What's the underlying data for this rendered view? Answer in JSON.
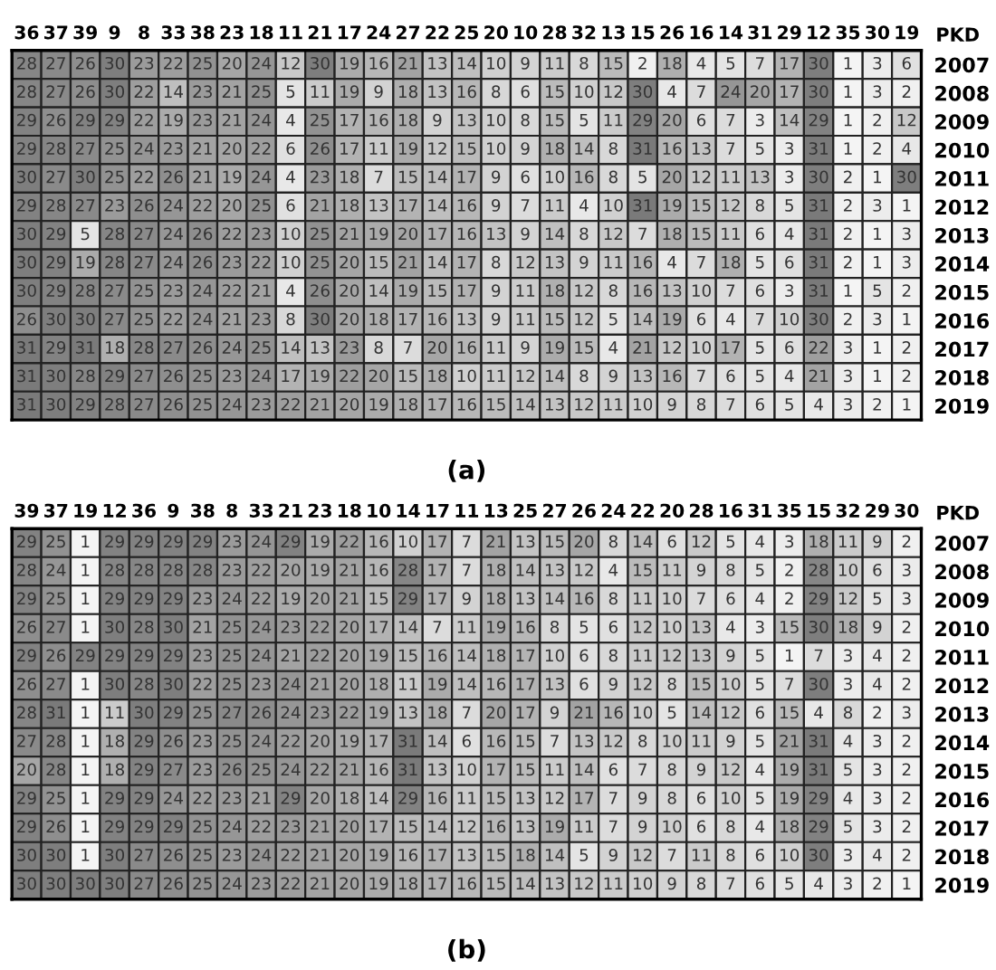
{
  "chart_data": [
    {
      "type": "heatmap",
      "title": "(a)",
      "ylabel": "PKD",
      "data_labels": true,
      "categories": [
        "36",
        "37",
        "39",
        "9",
        "8",
        "33",
        "38",
        "23",
        "18",
        "11",
        "21",
        "17",
        "24",
        "27",
        "22",
        "25",
        "20",
        "10",
        "28",
        "32",
        "13",
        "15",
        "26",
        "16",
        "14",
        "31",
        "29",
        "12",
        "35",
        "30",
        "19"
      ],
      "y_categories": [
        "2007",
        "2008",
        "2009",
        "2010",
        "2011",
        "2012",
        "2013",
        "2014",
        "2015",
        "2016",
        "2017",
        "2018",
        "2019"
      ],
      "cells": [
        [
          28,
          27,
          26,
          30,
          23,
          22,
          25,
          20,
          24,
          12,
          30,
          19,
          16,
          21,
          13,
          14,
          10,
          9,
          11,
          8,
          15,
          2,
          18,
          4,
          5,
          7,
          17,
          30,
          1,
          3,
          6
        ],
        [
          28,
          27,
          26,
          30,
          22,
          14,
          23,
          21,
          25,
          5,
          11,
          19,
          9,
          18,
          13,
          16,
          8,
          6,
          15,
          10,
          12,
          30,
          4,
          7,
          24,
          20,
          17,
          30,
          1,
          3,
          2
        ],
        [
          29,
          26,
          29,
          29,
          22,
          19,
          23,
          21,
          24,
          4,
          25,
          17,
          16,
          18,
          9,
          13,
          10,
          8,
          15,
          5,
          11,
          29,
          20,
          6,
          7,
          3,
          14,
          29,
          1,
          2,
          12
        ],
        [
          29,
          28,
          27,
          25,
          24,
          23,
          21,
          20,
          22,
          6,
          26,
          17,
          11,
          19,
          12,
          15,
          10,
          9,
          18,
          14,
          8,
          31,
          16,
          13,
          7,
          5,
          3,
          31,
          1,
          2,
          4
        ],
        [
          30,
          27,
          30,
          25,
          22,
          26,
          21,
          19,
          24,
          4,
          23,
          18,
          7,
          15,
          14,
          17,
          9,
          6,
          10,
          16,
          8,
          5,
          20,
          12,
          11,
          13,
          3,
          30,
          2,
          1,
          30
        ],
        [
          29,
          28,
          27,
          23,
          26,
          24,
          22,
          20,
          25,
          6,
          21,
          18,
          13,
          17,
          14,
          16,
          9,
          7,
          11,
          4,
          10,
          31,
          19,
          15,
          12,
          8,
          5,
          31,
          2,
          3,
          1
        ],
        [
          30,
          29,
          5,
          28,
          27,
          24,
          26,
          22,
          23,
          10,
          25,
          21,
          19,
          20,
          17,
          16,
          13,
          9,
          14,
          8,
          12,
          7,
          18,
          15,
          11,
          6,
          4,
          31,
          2,
          1,
          3
        ],
        [
          30,
          29,
          19,
          28,
          27,
          24,
          26,
          23,
          22,
          10,
          25,
          20,
          15,
          21,
          14,
          17,
          8,
          12,
          13,
          9,
          11,
          16,
          4,
          7,
          18,
          5,
          6,
          31,
          2,
          1,
          3
        ],
        [
          30,
          29,
          28,
          27,
          25,
          23,
          24,
          22,
          21,
          4,
          26,
          20,
          14,
          19,
          15,
          17,
          9,
          11,
          18,
          12,
          8,
          16,
          13,
          10,
          7,
          6,
          3,
          31,
          1,
          5,
          2
        ],
        [
          26,
          30,
          30,
          27,
          25,
          22,
          24,
          21,
          23,
          8,
          30,
          20,
          18,
          17,
          16,
          13,
          9,
          11,
          15,
          12,
          5,
          14,
          19,
          6,
          4,
          7,
          10,
          30,
          2,
          3,
          1
        ],
        [
          31,
          29,
          31,
          18,
          28,
          27,
          26,
          24,
          25,
          14,
          13,
          23,
          8,
          7,
          20,
          16,
          11,
          9,
          19,
          15,
          4,
          21,
          12,
          10,
          17,
          5,
          6,
          22,
          3,
          1,
          2
        ],
        [
          31,
          30,
          28,
          29,
          27,
          26,
          25,
          23,
          24,
          17,
          19,
          22,
          20,
          15,
          18,
          10,
          11,
          12,
          14,
          8,
          9,
          13,
          16,
          7,
          6,
          5,
          4,
          21,
          3,
          1,
          2
        ],
        [
          31,
          30,
          29,
          28,
          27,
          26,
          25,
          24,
          23,
          22,
          21,
          20,
          19,
          18,
          17,
          16,
          15,
          14,
          13,
          12,
          11,
          10,
          9,
          8,
          7,
          6,
          5,
          4,
          3,
          2,
          1
        ]
      ]
    },
    {
      "type": "heatmap",
      "title": "(b)",
      "ylabel": "PKD",
      "data_labels": true,
      "categories": [
        "39",
        "37",
        "19",
        "12",
        "36",
        "9",
        "38",
        "8",
        "33",
        "21",
        "23",
        "18",
        "10",
        "14",
        "17",
        "11",
        "13",
        "25",
        "27",
        "26",
        "24",
        "22",
        "20",
        "28",
        "16",
        "31",
        "35",
        "15",
        "32",
        "29",
        "30"
      ],
      "y_categories": [
        "2007",
        "2008",
        "2009",
        "2010",
        "2011",
        "2012",
        "2013",
        "2014",
        "2015",
        "2016",
        "2017",
        "2018",
        "2019"
      ],
      "cells": [
        [
          29,
          25,
          1,
          29,
          29,
          29,
          29,
          23,
          24,
          29,
          19,
          22,
          16,
          10,
          17,
          7,
          21,
          13,
          15,
          20,
          8,
          14,
          6,
          12,
          5,
          4,
          3,
          18,
          11,
          9,
          2
        ],
        [
          28,
          24,
          1,
          28,
          28,
          28,
          28,
          23,
          22,
          20,
          19,
          21,
          16,
          28,
          17,
          7,
          18,
          14,
          13,
          12,
          4,
          15,
          11,
          9,
          8,
          5,
          2,
          28,
          10,
          6,
          3
        ],
        [
          29,
          25,
          1,
          29,
          29,
          29,
          23,
          24,
          22,
          19,
          20,
          21,
          15,
          29,
          17,
          9,
          18,
          13,
          14,
          16,
          8,
          11,
          10,
          7,
          6,
          4,
          2,
          29,
          12,
          5,
          3
        ],
        [
          26,
          27,
          1,
          30,
          28,
          30,
          21,
          25,
          24,
          23,
          22,
          20,
          17,
          14,
          7,
          11,
          19,
          16,
          8,
          5,
          6,
          12,
          10,
          13,
          4,
          3,
          15,
          30,
          18,
          9,
          2
        ],
        [
          29,
          26,
          29,
          29,
          29,
          29,
          23,
          25,
          24,
          21,
          22,
          20,
          19,
          15,
          16,
          14,
          18,
          17,
          10,
          6,
          8,
          11,
          12,
          13,
          9,
          5,
          1,
          7,
          3,
          4,
          2
        ],
        [
          26,
          27,
          1,
          30,
          28,
          30,
          22,
          25,
          23,
          24,
          21,
          20,
          18,
          11,
          19,
          14,
          16,
          17,
          13,
          6,
          9,
          12,
          8,
          15,
          10,
          5,
          7,
          30,
          3,
          4,
          2
        ],
        [
          28,
          31,
          1,
          11,
          30,
          29,
          25,
          27,
          26,
          24,
          23,
          22,
          19,
          13,
          18,
          7,
          20,
          17,
          9,
          21,
          16,
          10,
          5,
          14,
          12,
          6,
          15,
          4,
          8,
          2,
          3
        ],
        [
          27,
          28,
          1,
          18,
          29,
          26,
          23,
          25,
          24,
          22,
          20,
          19,
          17,
          31,
          14,
          6,
          16,
          15,
          7,
          13,
          12,
          8,
          10,
          11,
          9,
          5,
          21,
          31,
          4,
          3,
          2
        ],
        [
          20,
          28,
          1,
          18,
          29,
          27,
          23,
          26,
          25,
          24,
          22,
          21,
          16,
          31,
          13,
          10,
          17,
          15,
          11,
          14,
          6,
          7,
          8,
          9,
          12,
          4,
          19,
          31,
          5,
          3,
          2
        ],
        [
          29,
          25,
          1,
          29,
          29,
          24,
          22,
          23,
          21,
          29,
          20,
          18,
          14,
          29,
          16,
          11,
          15,
          13,
          12,
          17,
          7,
          9,
          8,
          6,
          10,
          5,
          19,
          29,
          4,
          3,
          2
        ],
        [
          29,
          26,
          1,
          29,
          29,
          29,
          25,
          24,
          22,
          23,
          21,
          20,
          17,
          15,
          14,
          12,
          16,
          13,
          19,
          11,
          7,
          9,
          10,
          6,
          8,
          4,
          18,
          29,
          5,
          3,
          2
        ],
        [
          30,
          30,
          1,
          30,
          27,
          26,
          25,
          23,
          24,
          22,
          21,
          20,
          19,
          16,
          17,
          13,
          15,
          18,
          14,
          5,
          9,
          12,
          7,
          11,
          8,
          6,
          10,
          30,
          3,
          4,
          2
        ],
        [
          30,
          30,
          30,
          30,
          27,
          26,
          25,
          24,
          23,
          22,
          21,
          20,
          19,
          18,
          17,
          16,
          15,
          14,
          13,
          12,
          11,
          10,
          9,
          8,
          7,
          6,
          5,
          4,
          3,
          2,
          1
        ]
      ]
    }
  ]
}
